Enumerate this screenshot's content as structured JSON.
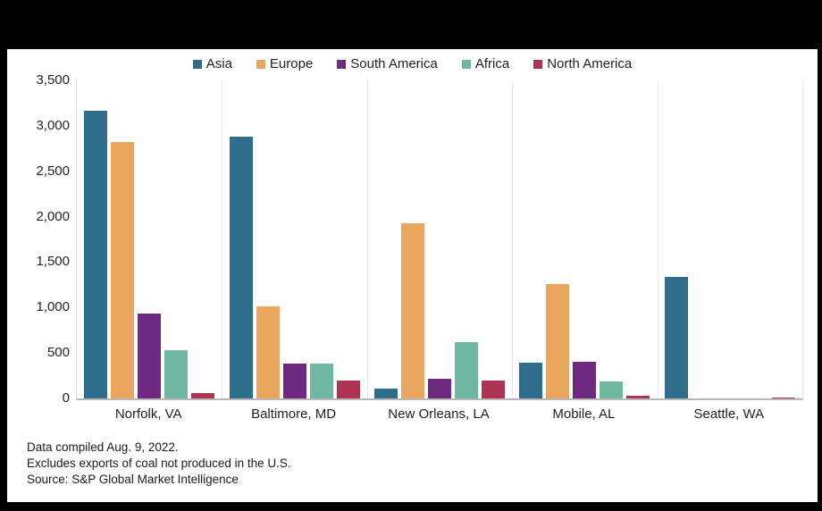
{
  "frame": {
    "background": "#000000",
    "card_background": "#ffffff"
  },
  "chart_data": {
    "type": "bar",
    "title": "",
    "categories": [
      "Norfolk, VA",
      "Baltimore, MD",
      "New Orleans, LA",
      "Mobile, AL",
      "Seattle, WA"
    ],
    "series": [
      {
        "name": "Asia",
        "color": "#2f6d8c",
        "values": [
          3170,
          2880,
          110,
          390,
          1340
        ]
      },
      {
        "name": "Europe",
        "color": "#eaa65c",
        "values": [
          2820,
          1010,
          1930,
          1260,
          0
        ]
      },
      {
        "name": "South America",
        "color": "#6e2a80",
        "values": [
          930,
          385,
          220,
          400,
          0
        ]
      },
      {
        "name": "Africa",
        "color": "#70b7a2",
        "values": [
          530,
          380,
          620,
          190,
          0
        ]
      },
      {
        "name": "North America",
        "color": "#ae3456",
        "values": [
          60,
          200,
          200,
          30,
          10
        ]
      }
    ],
    "ylim": [
      0,
      3500
    ],
    "ytick_step": 500,
    "ytick_labels": [
      "0",
      "500",
      "1,000",
      "1,500",
      "2,000",
      "2,500",
      "3,000",
      "3,500"
    ],
    "grid": "vertical category separators only",
    "legend_position": "top-center"
  },
  "footer": {
    "lines": [
      "Data compiled Aug. 9, 2022.",
      "Excludes exports of coal not produced in the U.S.",
      "Source: S&P Global Market Intelligence"
    ]
  }
}
